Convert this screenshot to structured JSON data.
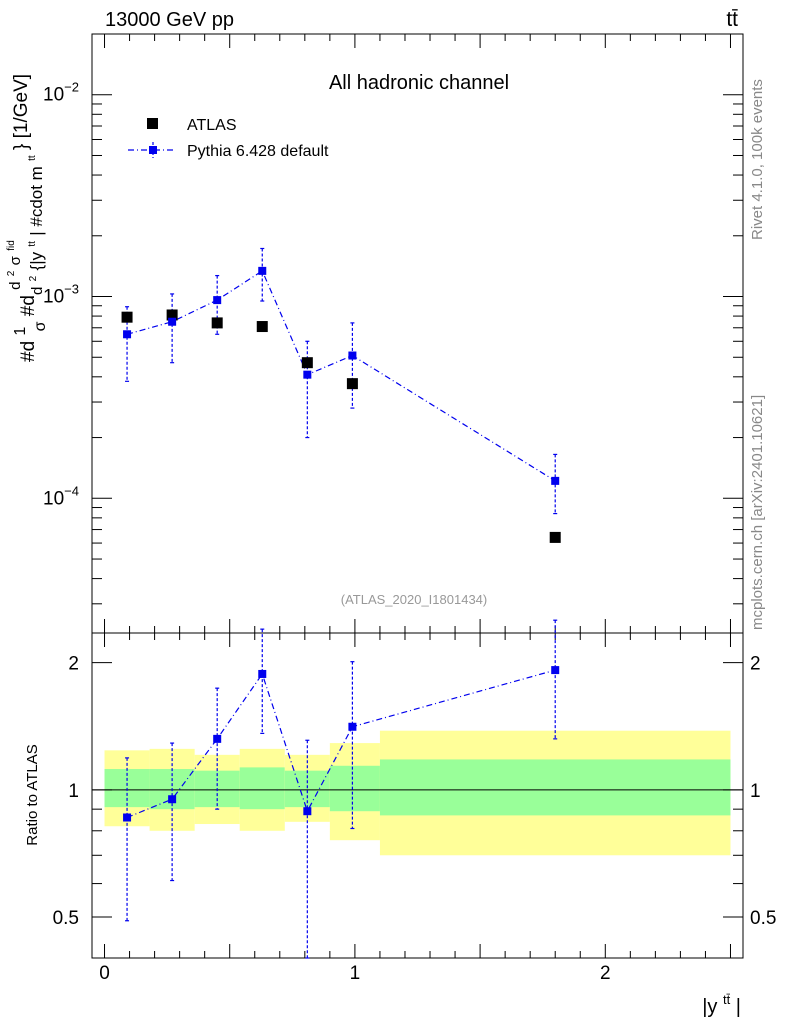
{
  "header": {
    "energy_label": "13000 GeV pp",
    "process_label": "tt̄"
  },
  "side_labels": {
    "rivet": "Rivet 4.1.0,  100k events",
    "mcplots": "mcplots.cern.ch [arXiv:2401.10621]"
  },
  "chart_data": {
    "type": "scatter",
    "title": "All hadronic channel",
    "analysis_id": "(ATLAS_2020_I1801434)",
    "ylabel": "#d¹/σ#d d²σᶠᵈ/d² {|yᵗᵗ|} #cdot mᵗᵗ} [1/GeV]",
    "ylabel_parts": {
      "lead": "#d",
      "frac1_num": "1",
      "frac1_den": "σ",
      "mid": "#d",
      "frac2_num_base": "d",
      "frac2_num_exp": "2",
      "frac2_num_sym": "σ",
      "frac2_num_sup": "fid",
      "frac2_den_base": "d",
      "frac2_den_exp": "2",
      "frac2_den_rest": " {|y",
      "frac2_den_sup": "tt",
      "frac2_den_tail": "| #cdot m",
      "frac2_den_sup2": "tt",
      "unit": "} [1/GeV]"
    },
    "xlabel": {
      "base": "|y",
      "sup": "tt̄",
      "close": "|"
    },
    "ratio_ylabel": "Ratio to ATLAS",
    "xlim": [
      -0.05,
      2.55
    ],
    "ylim": [
      2.15e-05,
      0.02
    ],
    "ratio_ylim": [
      0.4,
      2.35
    ],
    "x_ticks": [
      0,
      1,
      2
    ],
    "x_tick_labels": [
      "0",
      "1",
      "2"
    ],
    "y_ticks": [
      0.0001,
      0.001,
      0.01
    ],
    "y_tick_labels": [
      {
        "base": "10",
        "exp": "−4"
      },
      {
        "base": "10",
        "exp": "−3"
      },
      {
        "base": "10",
        "exp": "−2"
      }
    ],
    "ratio_ticks": [
      0.5,
      1,
      2
    ],
    "ratio_tick_labels": [
      "0.5",
      "1",
      "2"
    ],
    "legend": [
      "ATLAS",
      "Pythia 6.428 default"
    ],
    "legend_position": "top-left",
    "bins": [
      {
        "lo": 0.0,
        "hi": 0.18,
        "band1_lo": 0.91,
        "band1_hi": 1.12,
        "band2_lo": 0.82,
        "band2_hi": 1.24
      },
      {
        "lo": 0.18,
        "hi": 0.36,
        "band1_lo": 0.9,
        "band1_hi": 1.12,
        "band2_lo": 0.8,
        "band2_hi": 1.25
      },
      {
        "lo": 0.36,
        "hi": 0.54,
        "band1_lo": 0.91,
        "band1_hi": 1.11,
        "band2_lo": 0.83,
        "band2_hi": 1.21
      },
      {
        "lo": 0.54,
        "hi": 0.72,
        "band1_lo": 0.9,
        "band1_hi": 1.13,
        "band2_lo": 0.8,
        "band2_hi": 1.25
      },
      {
        "lo": 0.72,
        "hi": 0.9,
        "band1_lo": 0.91,
        "band1_hi": 1.11,
        "band2_lo": 0.84,
        "band2_hi": 1.21
      },
      {
        "lo": 0.9,
        "hi": 1.1,
        "band1_lo": 0.89,
        "band1_hi": 1.14,
        "band2_lo": 0.76,
        "band2_hi": 1.29
      },
      {
        "lo": 1.1,
        "hi": 2.5,
        "band1_lo": 0.87,
        "band1_hi": 1.18,
        "band2_lo": 0.7,
        "band2_hi": 1.38
      }
    ],
    "series": [
      {
        "name": "ATLAS",
        "color": "#000000",
        "x": [
          0.09,
          0.27,
          0.45,
          0.63,
          0.81,
          0.99,
          1.8
        ],
        "y": [
          0.00079,
          0.00081,
          0.00074,
          0.00071,
          0.00047,
          0.00037,
          6.4e-05
        ]
      },
      {
        "name": "Pythia 6.428 default",
        "color": "#0000ee",
        "x": [
          0.09,
          0.27,
          0.45,
          0.63,
          0.81,
          0.99,
          1.8
        ],
        "y": [
          0.00065,
          0.00075,
          0.00096,
          0.00134,
          0.00041,
          0.00051,
          0.000122
        ],
        "y_err_lo": [
          0.00027,
          0.00028,
          0.00031,
          0.00039,
          0.00021,
          0.00023,
          3.8e-05
        ],
        "y_err_hi": [
          0.00024,
          0.00028,
          0.00031,
          0.00039,
          0.00019,
          0.00023,
          4.3e-05
        ],
        "ratio": [
          0.86,
          0.95,
          1.32,
          1.88,
          0.89,
          1.41,
          1.92
        ],
        "ratio_err_lo": [
          0.37,
          0.34,
          0.42,
          0.52,
          0.49,
          0.6,
          0.6
        ],
        "ratio_err_hi": [
          0.33,
          0.34,
          0.42,
          0.52,
          0.42,
          0.6,
          0.6
        ]
      }
    ]
  }
}
